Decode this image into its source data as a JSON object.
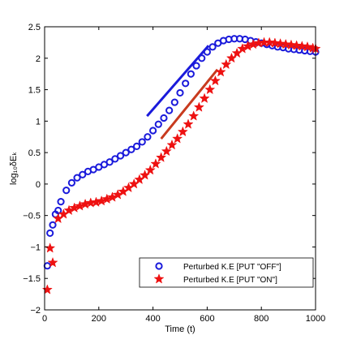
{
  "chart_data": {
    "type": "scatter",
    "title": "",
    "xlabel": "Time (t)",
    "ylabel": "log₁₀δEₖ",
    "xlim": [
      0,
      1000
    ],
    "ylim": [
      -2,
      2.5
    ],
    "xticks": [
      0,
      200,
      400,
      600,
      800,
      1000
    ],
    "xtick_labels": [
      "0",
      "200",
      "400",
      "600",
      "800",
      "1000"
    ],
    "yticks": [
      -2,
      -1.5,
      -1,
      -0.5,
      0,
      0.5,
      1,
      1.5,
      2,
      2.5
    ],
    "ytick_labels": [
      "−2",
      "−1.5",
      "−1",
      "−0.5",
      "0",
      "0.5",
      "1",
      "1.5",
      "2",
      "2.5"
    ],
    "grid": false,
    "legend_position": "bottom-right",
    "series": [
      {
        "name": "Perturbed K.E [PUT \"OFF\"]",
        "marker": "circle",
        "color": "#1a1adb",
        "x": [
          10,
          20,
          30,
          40,
          50,
          60,
          80,
          100,
          120,
          140,
          160,
          180,
          200,
          220,
          240,
          260,
          280,
          300,
          320,
          340,
          360,
          380,
          400,
          420,
          440,
          460,
          480,
          500,
          520,
          540,
          560,
          580,
          600,
          620,
          640,
          660,
          680,
          700,
          720,
          740,
          760,
          780,
          800,
          820,
          840,
          860,
          880,
          900,
          920,
          940,
          960,
          980,
          1000
        ],
        "y": [
          -1.3,
          -0.78,
          -0.65,
          -0.48,
          -0.42,
          -0.28,
          -0.1,
          0.02,
          0.1,
          0.15,
          0.2,
          0.23,
          0.27,
          0.31,
          0.35,
          0.4,
          0.45,
          0.5,
          0.55,
          0.6,
          0.67,
          0.75,
          0.85,
          0.95,
          1.05,
          1.17,
          1.3,
          1.45,
          1.6,
          1.75,
          1.88,
          2.0,
          2.1,
          2.18,
          2.24,
          2.28,
          2.3,
          2.31,
          2.31,
          2.3,
          2.28,
          2.26,
          2.24,
          2.22,
          2.2,
          2.18,
          2.17,
          2.15,
          2.14,
          2.13,
          2.12,
          2.11,
          2.1
        ]
      },
      {
        "name": "Perturbed K.E [PUT \"ON\"]",
        "marker": "star",
        "color": "#ee1111",
        "x": [
          10,
          20,
          30,
          50,
          70,
          90,
          110,
          130,
          150,
          170,
          190,
          210,
          230,
          250,
          270,
          290,
          310,
          330,
          350,
          370,
          390,
          410,
          430,
          450,
          470,
          490,
          510,
          530,
          550,
          570,
          590,
          610,
          630,
          650,
          670,
          690,
          710,
          730,
          750,
          770,
          790,
          810,
          830,
          850,
          870,
          890,
          910,
          930,
          950,
          970,
          990,
          1000
        ],
        "y": [
          -1.68,
          -1.02,
          -1.25,
          -0.55,
          -0.48,
          -0.42,
          -0.38,
          -0.35,
          -0.32,
          -0.3,
          -0.29,
          -0.27,
          -0.24,
          -0.21,
          -0.17,
          -0.12,
          -0.06,
          0.0,
          0.07,
          0.14,
          0.22,
          0.32,
          0.42,
          0.52,
          0.62,
          0.72,
          0.83,
          0.95,
          1.08,
          1.22,
          1.36,
          1.5,
          1.64,
          1.78,
          1.9,
          2.0,
          2.08,
          2.15,
          2.19,
          2.22,
          2.24,
          2.25,
          2.25,
          2.24,
          2.23,
          2.22,
          2.21,
          2.2,
          2.19,
          2.18,
          2.16,
          2.15
        ]
      }
    ],
    "reference_lines": [
      {
        "color": "#1a1adb",
        "x": [
          378,
          605
        ],
        "y": [
          1.08,
          2.2
        ]
      },
      {
        "color": "#c83a1e",
        "x": [
          430,
          638
        ],
        "y": [
          0.72,
          1.82
        ]
      }
    ]
  }
}
